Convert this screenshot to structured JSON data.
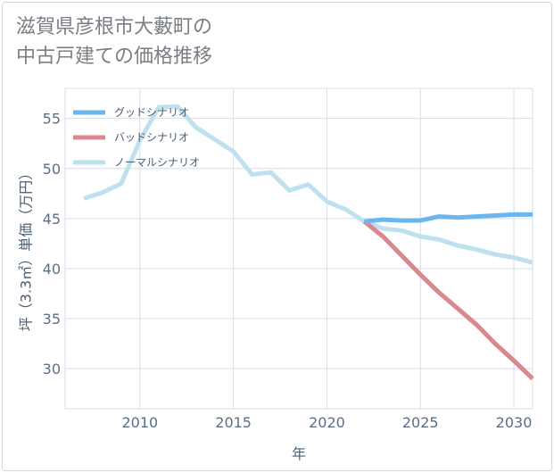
{
  "page": {
    "title_line1": "滋賀県彦根市大藪町の",
    "title_line2": "中古戸建ての価格推移"
  },
  "chart_data": {
    "type": "line",
    "title": "滋賀県彦根市大藪町の中古戸建ての価格推移",
    "xlabel": "年",
    "ylabel": "坪（3.3㎡）単価（万円）",
    "xlim": [
      2006,
      2031
    ],
    "ylim": [
      26,
      58
    ],
    "xticks": [
      2010,
      2015,
      2020,
      2025,
      2030
    ],
    "yticks": [
      30,
      35,
      40,
      45,
      50,
      55
    ],
    "grid": true,
    "legend_position": "top-left",
    "series": [
      {
        "name": "グッドシナリオ",
        "color": "#6cb6ee",
        "x": [
          2022,
          2023,
          2024,
          2025,
          2026,
          2027,
          2028,
          2029,
          2030,
          2031
        ],
        "values": [
          44.7,
          44.9,
          44.8,
          44.8,
          45.2,
          45.1,
          45.2,
          45.3,
          45.4,
          45.4
        ]
      },
      {
        "name": "バッドシナリオ",
        "color": "#d98890",
        "x": [
          2022,
          2023,
          2024,
          2025,
          2026,
          2027,
          2028,
          2029,
          2030,
          2031
        ],
        "values": [
          44.7,
          43.2,
          41.3,
          39.4,
          37.6,
          36.0,
          34.4,
          32.5,
          30.8,
          29.0
        ]
      },
      {
        "name": "ノーマルシナリオ",
        "color": "#bfe0ee",
        "x": [
          2007,
          2008,
          2009,
          2010,
          2011,
          2012,
          2013,
          2014,
          2015,
          2016,
          2017,
          2018,
          2019,
          2020,
          2021,
          2022,
          2023,
          2024,
          2025,
          2026,
          2027,
          2028,
          2029,
          2030,
          2031
        ],
        "values": [
          47.0,
          47.6,
          48.5,
          52.8,
          56.1,
          56.2,
          54.1,
          52.9,
          51.7,
          49.4,
          49.6,
          47.8,
          48.4,
          46.7,
          45.9,
          44.7,
          44.0,
          43.8,
          43.2,
          42.9,
          42.3,
          41.9,
          41.4,
          41.1,
          40.6
        ]
      }
    ]
  }
}
